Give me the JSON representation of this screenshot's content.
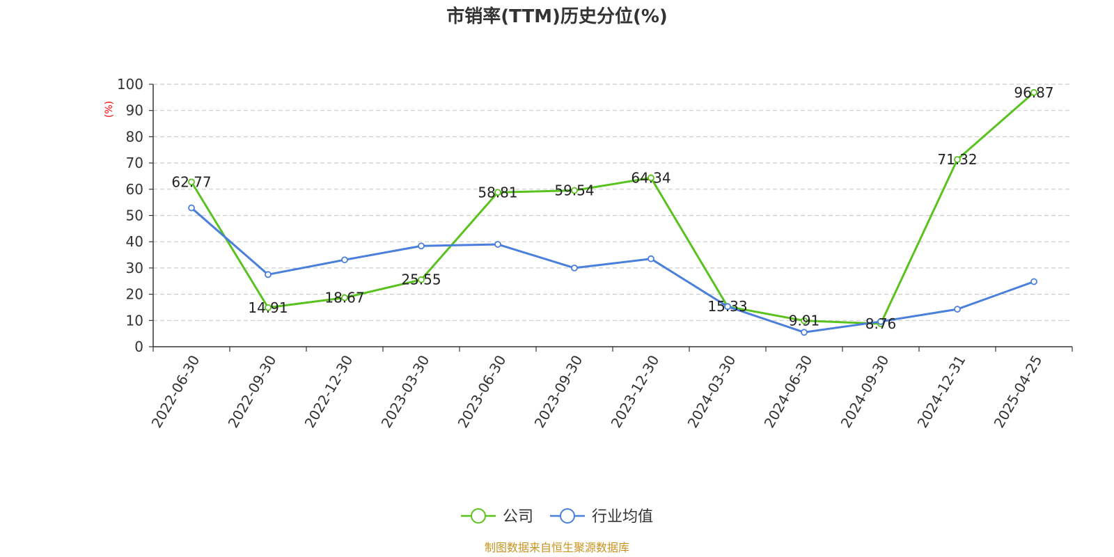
{
  "chart_data": {
    "type": "line",
    "title": "市销率(TTM)历史分位(%)",
    "ylabel": "(%)",
    "ylim": [
      0,
      100
    ],
    "yticks": [
      0,
      10,
      20,
      30,
      40,
      50,
      60,
      70,
      80,
      90,
      100
    ],
    "grid": true,
    "categories": [
      "2022-06-30",
      "2022-09-30",
      "2022-12-30",
      "2023-03-30",
      "2023-06-30",
      "2023-09-30",
      "2023-12-30",
      "2024-03-30",
      "2024-06-30",
      "2024-09-30",
      "2024-12-31",
      "2025-04-25"
    ],
    "series": [
      {
        "name": "公司",
        "color": "#5ac21e",
        "values": [
          62.77,
          14.91,
          18.67,
          25.55,
          58.81,
          59.54,
          64.34,
          15.33,
          9.91,
          8.76,
          71.32,
          96.87
        ],
        "labels": [
          "62.77",
          "14.91",
          "18.67",
          "25.55",
          "58.81",
          "59.54",
          "64.34",
          "15.33",
          "9.91",
          "8.76",
          "71.32",
          "96.87"
        ]
      },
      {
        "name": "行业均值",
        "color": "#4a7fdc",
        "values": [
          52.9,
          27.5,
          33.1,
          38.4,
          39.0,
          30.0,
          33.5,
          15.3,
          5.5,
          9.6,
          14.3,
          24.8
        ]
      }
    ],
    "legend_position": "bottom-center",
    "source": "制图数据来自恒生聚源数据库",
    "source_color": "#c8941f"
  }
}
